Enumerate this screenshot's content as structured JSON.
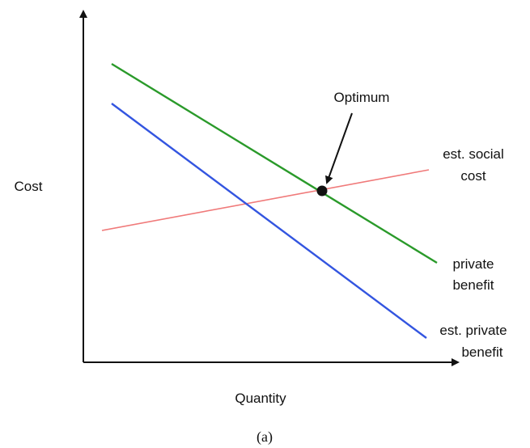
{
  "axes": {
    "y_label": "Cost",
    "x_label": "Quantity"
  },
  "curves": [
    {
      "label_lines": [
        "est. social",
        "cost"
      ]
    },
    {
      "label_lines": [
        "private",
        "benefit"
      ]
    },
    {
      "label_lines": [
        "est. private",
        "benefit"
      ]
    }
  ],
  "point": {
    "label": "Optimum"
  },
  "caption": "(a)"
}
